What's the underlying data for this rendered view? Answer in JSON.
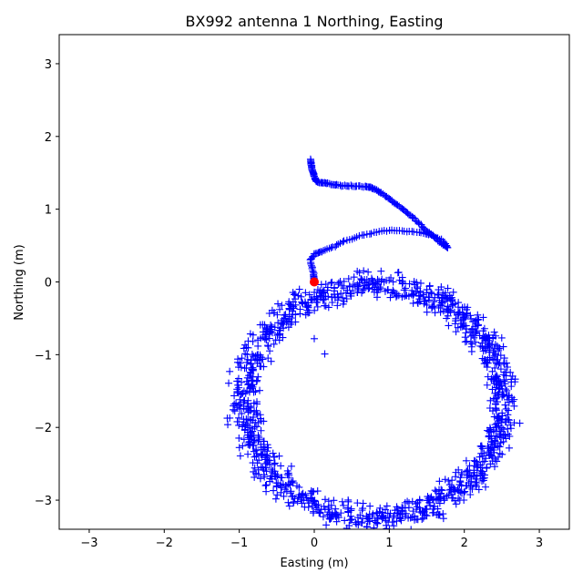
{
  "chart_data": {
    "type": "scatter",
    "title": "BX992 antenna 1 Northing, Easting",
    "xlabel": "Easting (m)",
    "ylabel": "Northing (m)",
    "xlim": [
      -3.4,
      3.4
    ],
    "ylim": [
      -3.4,
      3.4
    ],
    "xticks": [
      -3,
      -2,
      -1,
      0,
      1,
      2,
      3
    ],
    "yticks": [
      -3,
      -2,
      -1,
      0,
      1,
      2,
      3
    ],
    "grid": false,
    "series": [
      {
        "marker": "plus",
        "color": "#0000ff",
        "loop_center": [
          0.8,
          -1.65
        ],
        "loop_radius_x": 1.72,
        "loop_radius_y": 1.6,
        "band_width": 0.28,
        "loop_points": 1300,
        "path_points": [
          [
            -0.05,
            1.68
          ],
          [
            -0.04,
            1.6
          ],
          [
            -0.02,
            1.52
          ],
          [
            0.0,
            1.45
          ],
          [
            0.02,
            1.4
          ],
          [
            0.05,
            1.37
          ],
          [
            0.12,
            1.36
          ],
          [
            0.2,
            1.35
          ],
          [
            0.3,
            1.33
          ],
          [
            0.42,
            1.32
          ],
          [
            0.55,
            1.32
          ],
          [
            0.68,
            1.31
          ],
          [
            0.75,
            1.3
          ],
          [
            0.82,
            1.27
          ],
          [
            0.9,
            1.22
          ],
          [
            1.0,
            1.14
          ],
          [
            1.1,
            1.06
          ],
          [
            1.2,
            0.98
          ],
          [
            1.3,
            0.9
          ],
          [
            1.4,
            0.8
          ],
          [
            1.5,
            0.7
          ],
          [
            1.6,
            0.62
          ],
          [
            1.7,
            0.53
          ],
          [
            1.78,
            0.47
          ],
          [
            1.7,
            0.58
          ],
          [
            1.55,
            0.65
          ],
          [
            1.4,
            0.68
          ],
          [
            1.2,
            0.7
          ],
          [
            1.0,
            0.71
          ],
          [
            0.8,
            0.68
          ],
          [
            0.6,
            0.63
          ],
          [
            0.4,
            0.56
          ],
          [
            0.25,
            0.48
          ],
          [
            0.1,
            0.42
          ],
          [
            0.0,
            0.38
          ],
          [
            -0.05,
            0.3
          ],
          [
            -0.02,
            0.15
          ],
          [
            0.0,
            0.05
          ],
          [
            0.0,
            0.0
          ]
        ],
        "outliers": [
          [
            0.0,
            -0.78
          ],
          [
            0.14,
            -0.99
          ]
        ]
      },
      {
        "marker": "circle",
        "color": "#ff0000",
        "points": [
          [
            0.0,
            0.0
          ]
        ]
      }
    ]
  }
}
